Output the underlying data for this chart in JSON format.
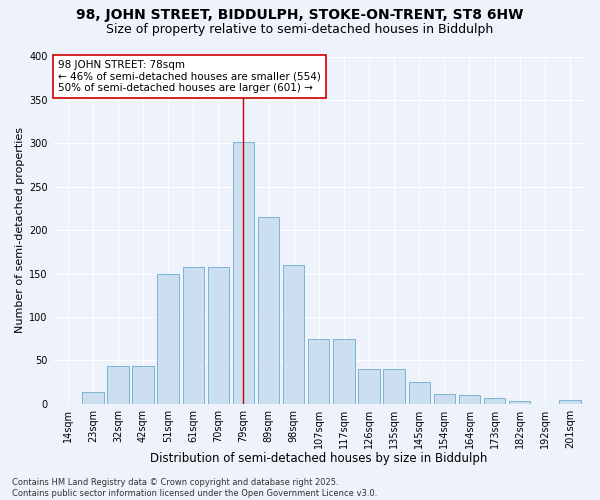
{
  "title1": "98, JOHN STREET, BIDDULPH, STOKE-ON-TRENT, ST8 6HW",
  "title2": "Size of property relative to semi-detached houses in Biddulph",
  "xlabel": "Distribution of semi-detached houses by size in Biddulph",
  "ylabel": "Number of semi-detached properties",
  "categories": [
    "14sqm",
    "23sqm",
    "32sqm",
    "42sqm",
    "51sqm",
    "61sqm",
    "70sqm",
    "79sqm",
    "89sqm",
    "98sqm",
    "107sqm",
    "117sqm",
    "126sqm",
    "135sqm",
    "145sqm",
    "154sqm",
    "164sqm",
    "173sqm",
    "182sqm",
    "192sqm",
    "201sqm"
  ],
  "values": [
    0,
    14,
    44,
    44,
    150,
    158,
    158,
    302,
    215,
    160,
    75,
    75,
    40,
    40,
    25,
    11,
    10,
    7,
    3,
    0,
    4
  ],
  "bar_color": "#ccdff0",
  "bar_edge_color": "#7ab4d4",
  "vline_x_index": 7,
  "vline_color": "#cc0000",
  "annotation_text": "98 JOHN STREET: 78sqm\n← 46% of semi-detached houses are smaller (554)\n50% of semi-detached houses are larger (601) →",
  "annotation_box_color": "#ffffff",
  "annotation_box_edge": "#cc0000",
  "ylim": [
    0,
    400
  ],
  "yticks": [
    0,
    50,
    100,
    150,
    200,
    250,
    300,
    350,
    400
  ],
  "footnote": "Contains HM Land Registry data © Crown copyright and database right 2025.\nContains public sector information licensed under the Open Government Licence v3.0.",
  "bg_color": "#eef2fa",
  "grid_color": "#ffffff",
  "title1_fontsize": 10,
  "title2_fontsize": 9,
  "xlabel_fontsize": 8.5,
  "ylabel_fontsize": 8,
  "annot_fontsize": 7.5,
  "footnote_fontsize": 6,
  "tick_fontsize": 7
}
